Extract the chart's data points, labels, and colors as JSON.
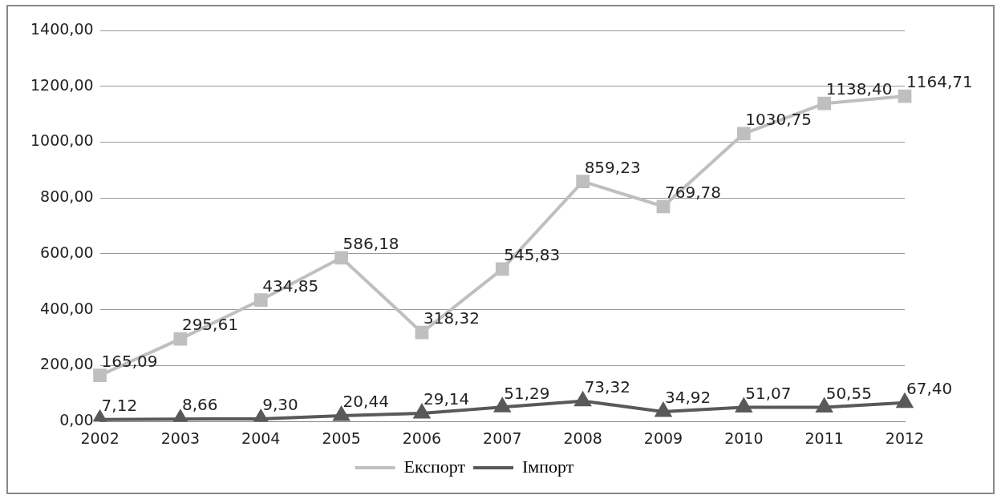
{
  "chart_data": {
    "type": "line",
    "categories": [
      "2002",
      "2003",
      "2004",
      "2005",
      "2006",
      "2007",
      "2008",
      "2009",
      "2010",
      "2011",
      "2012"
    ],
    "series": [
      {
        "name": "Експорт",
        "color": "#bfbfbf",
        "marker": "square",
        "values": [
          165.09,
          295.61,
          434.85,
          586.18,
          318.32,
          545.83,
          859.23,
          769.78,
          1030.75,
          1138.4,
          1164.71
        ],
        "value_labels": [
          "165,09",
          "295,61",
          "434,85",
          "586,18",
          "318,32",
          "545,83",
          "859,23",
          "769,78",
          "1030,75",
          "1138,40",
          "1164,71"
        ]
      },
      {
        "name": "Імпорт",
        "color": "#595959",
        "marker": "triangle",
        "values": [
          7.12,
          8.66,
          9.3,
          20.44,
          29.14,
          51.29,
          73.32,
          34.92,
          51.07,
          50.55,
          67.4
        ],
        "value_labels": [
          "7,12",
          "8,66",
          "9,30",
          "20,44",
          "29,14",
          "51,29",
          "73,32",
          "34,92",
          "51,07",
          "50,55",
          "67,40"
        ]
      }
    ],
    "ylim": [
      0,
      1400
    ],
    "yticks": [
      {
        "value": 0,
        "label": "0,00"
      },
      {
        "value": 200,
        "label": "200,00"
      },
      {
        "value": 400,
        "label": "400,00"
      },
      {
        "value": 600,
        "label": "600,00"
      },
      {
        "value": 800,
        "label": "800,00"
      },
      {
        "value": 1000,
        "label": "1000,00"
      },
      {
        "value": 1200,
        "label": "1200,00"
      },
      {
        "value": 1400,
        "label": "1400,00"
      }
    ],
    "grid": "y",
    "legend": "bottom",
    "line_style": "solid"
  }
}
